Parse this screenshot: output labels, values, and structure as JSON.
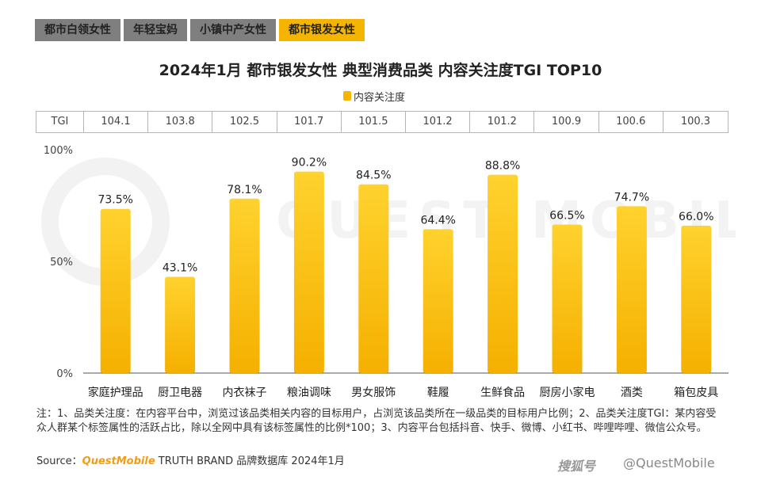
{
  "tabs": [
    {
      "label": "都市白领女性",
      "active": false
    },
    {
      "label": "年轻宝妈",
      "active": false
    },
    {
      "label": "小镇中产女性",
      "active": false
    },
    {
      "label": "都市银发女性",
      "active": true
    }
  ],
  "colors": {
    "bar_top": "#ffd22e",
    "bar_bottom": "#f5b000",
    "tab_active": "#f5b400",
    "tab_inactive": "#7f7f7f",
    "brand": "#f39c12"
  },
  "tgi_header": "TGI",
  "chart_data": {
    "type": "bar",
    "title": "2024年1月 都市银发女性 典型消费品类 内容关注度TGI TOP10",
    "legend": [
      "内容关注度"
    ],
    "legend_position": "top-center",
    "categories": [
      "家庭护理品",
      "厨卫电器",
      "内衣袜子",
      "粮油调味",
      "男女服饰",
      "鞋履",
      "生鲜食品",
      "厨房小家电",
      "酒类",
      "箱包皮具"
    ],
    "values": [
      73.5,
      43.1,
      78.1,
      90.2,
      84.5,
      64.4,
      88.8,
      66.5,
      74.7,
      66.0
    ],
    "value_labels": [
      "73.5%",
      "43.1%",
      "78.1%",
      "90.2%",
      "84.5%",
      "64.4%",
      "88.8%",
      "66.5%",
      "74.7%",
      "66.0%"
    ],
    "tgi": [
      "104.1",
      "103.8",
      "102.5",
      "101.7",
      "101.5",
      "101.2",
      "101.2",
      "100.9",
      "100.6",
      "100.3"
    ],
    "yticks": [
      "0%",
      "50%",
      "100%"
    ],
    "ylim": [
      0,
      100
    ],
    "grid": false
  },
  "note": "注：1、品类关注度：在内容平台中，浏览过该品类相关内容的目标用户，占浏览该品类所在一级品类的目标用户比例；2、品类关注度TGI：某内容受众人群某个标签属性的活跃占比，除以全网中具有该标签属性的比例*100；3、内容平台包括抖音、快手、微博、小红书、哔哩哔哩、微信公众号。",
  "source": {
    "prefix": "Source：",
    "brand": "QuestMobile",
    "rest": " TRUTH BRAND 品牌数据库 2024年1月"
  },
  "footer": {
    "logo_text": "搜狐号",
    "credit": "@QuestMobile"
  },
  "watermark": "QUEST MOBILE"
}
